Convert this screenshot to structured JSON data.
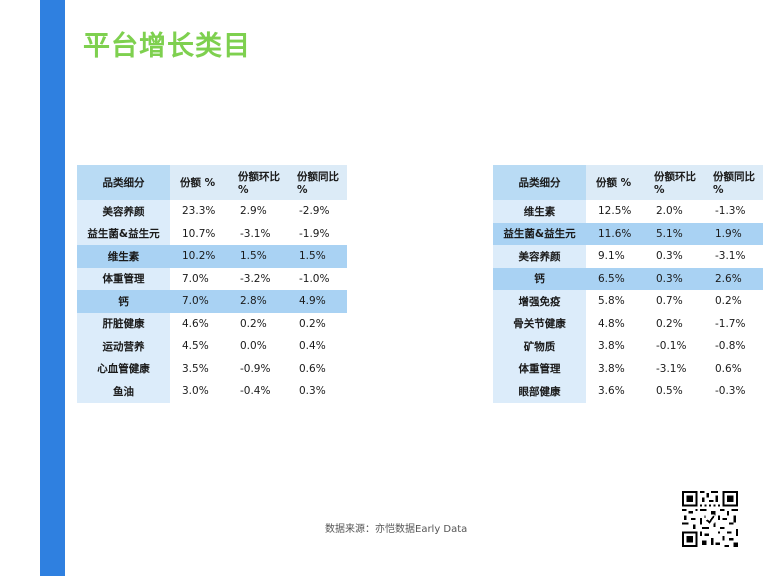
{
  "title": "平台增长类目",
  "tables": [
    {
      "headers": [
        "品类细分",
        "份额 %",
        "份额环比 %",
        "份额同比 %"
      ],
      "rows": [
        {
          "category": "美容养颜",
          "share": "23.3%",
          "mom": "2.9%",
          "yoy": "-2.9%",
          "highlight": false
        },
        {
          "category": "益生菌&益生元",
          "share": "10.7%",
          "mom": "-3.1%",
          "yoy": "-1.9%",
          "highlight": false
        },
        {
          "category": "维生素",
          "share": "10.2%",
          "mom": "1.5%",
          "yoy": "1.5%",
          "highlight": true
        },
        {
          "category": "体重管理",
          "share": "7.0%",
          "mom": "-3.2%",
          "yoy": "-1.0%",
          "highlight": false
        },
        {
          "category": "钙",
          "share": "7.0%",
          "mom": "2.8%",
          "yoy": "4.9%",
          "highlight": true
        },
        {
          "category": "肝脏健康",
          "share": "4.6%",
          "mom": "0.2%",
          "yoy": "0.2%",
          "highlight": false
        },
        {
          "category": "运动营养",
          "share": "4.5%",
          "mom": "0.0%",
          "yoy": "0.4%",
          "highlight": false
        },
        {
          "category": "心血管健康",
          "share": "3.5%",
          "mom": "-0.9%",
          "yoy": "0.6%",
          "highlight": false
        },
        {
          "category": "鱼油",
          "share": "3.0%",
          "mom": "-0.4%",
          "yoy": "0.3%",
          "highlight": false
        }
      ]
    },
    {
      "headers": [
        "品类细分",
        "份额 %",
        "份额环比 %",
        "份额同比 %"
      ],
      "rows": [
        {
          "category": "维生素",
          "share": "12.5%",
          "mom": "2.0%",
          "yoy": "-1.3%",
          "highlight": false
        },
        {
          "category": "益生菌&益生元",
          "share": "11.6%",
          "mom": "5.1%",
          "yoy": "1.9%",
          "highlight": true
        },
        {
          "category": "美容养颜",
          "share": "9.1%",
          "mom": "0.3%",
          "yoy": "-3.1%",
          "highlight": false
        },
        {
          "category": "钙",
          "share": "6.5%",
          "mom": "0.3%",
          "yoy": "2.6%",
          "highlight": true
        },
        {
          "category": "增强免疫",
          "share": "5.8%",
          "mom": "0.7%",
          "yoy": "0.2%",
          "highlight": false
        },
        {
          "category": "骨关节健康",
          "share": "4.8%",
          "mom": "0.2%",
          "yoy": "-1.7%",
          "highlight": false
        },
        {
          "category": "矿物质",
          "share": "3.8%",
          "mom": "-0.1%",
          "yoy": "-0.8%",
          "highlight": false
        },
        {
          "category": "体重管理",
          "share": "3.8%",
          "mom": "-3.1%",
          "yoy": "0.6%",
          "highlight": false
        },
        {
          "category": "眼部健康",
          "share": "3.6%",
          "mom": "0.5%",
          "yoy": "-0.3%",
          "highlight": false
        }
      ]
    }
  ],
  "source": "数据来源：亦恺数据Early Data",
  "colors": {
    "title": "#7ed04f",
    "side_bar": "#2f80e0",
    "header_name_bg": "#b9dbf4",
    "header_bg": "#dcebf7",
    "name_cell_bg": "#dcecfa",
    "highlight_bg": "#a9d2f3"
  },
  "icons": [
    "qr-code-icon"
  ]
}
